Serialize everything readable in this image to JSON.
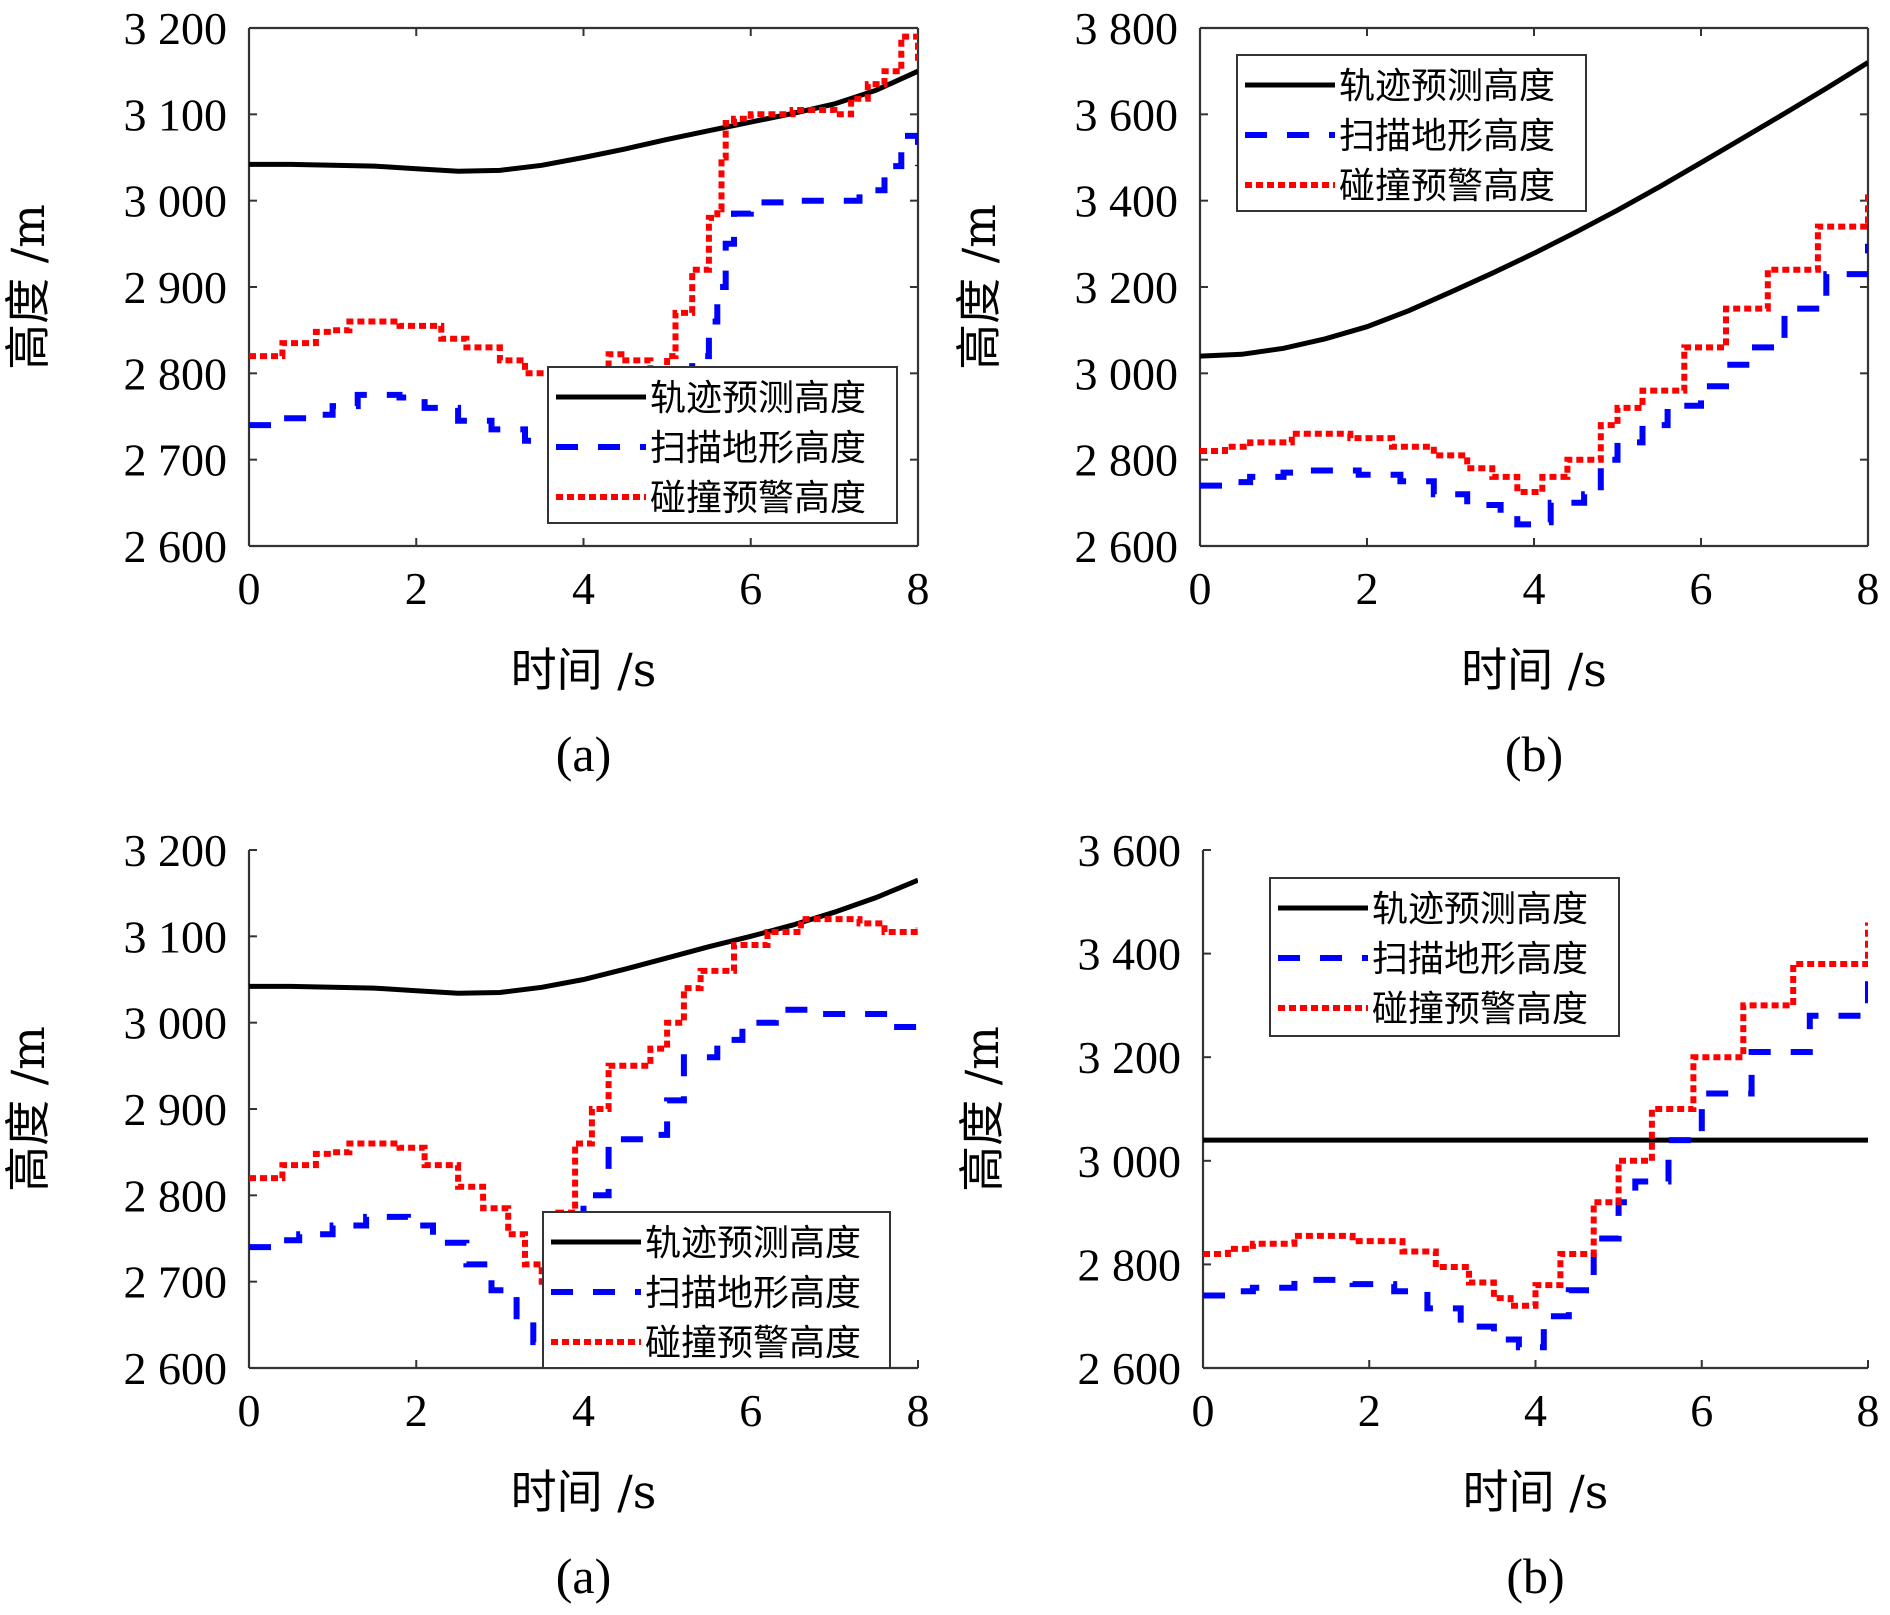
{
  "chart_data": [
    {
      "id": "top-left",
      "caption": "(a)",
      "type": "line",
      "xlabel": "时间 /s",
      "ylabel": "高度 /m",
      "xlim": [
        0,
        8
      ],
      "ylim": [
        2600,
        3200
      ],
      "xticks": [
        0,
        2,
        4,
        6,
        8
      ],
      "xtick_labels": [
        "0",
        "2",
        "4",
        "6",
        "8"
      ],
      "yticks": [
        2600,
        2700,
        2800,
        2900,
        3000,
        3100,
        3200
      ],
      "ytick_labels": [
        "2 600",
        "2 700",
        "2 800",
        "2 900",
        "3 000",
        "3 100",
        "3 200"
      ],
      "legend_position": "bottom-right",
      "grid": false,
      "series": [
        {
          "name": "轨迹预测高度",
          "style": "solid",
          "color": "#000000",
          "x": [
            0,
            0.5,
            1.0,
            1.5,
            2.0,
            2.5,
            3.0,
            3.5,
            4.0,
            4.5,
            5.0,
            5.5,
            6.0,
            6.5,
            7.0,
            7.5,
            8.0
          ],
          "y": [
            3042,
            3042,
            3041,
            3040,
            3037,
            3034,
            3035,
            3041,
            3050,
            3060,
            3071,
            3081,
            3091,
            3101,
            3112,
            3128,
            3150
          ]
        },
        {
          "name": "扫描地形高度",
          "style": "dashed",
          "color": "#0000ff",
          "x": [
            0,
            0.3,
            0.7,
            1.0,
            1.3,
            1.8,
            2.1,
            2.5,
            2.9,
            3.3,
            3.6,
            3.8,
            4.2,
            4.6,
            5.0,
            5.3,
            5.5,
            5.6,
            5.7,
            5.8,
            6.0,
            6.5,
            7.0,
            7.3,
            7.6,
            7.8,
            8.0
          ],
          "y": [
            2740,
            2748,
            2752,
            2762,
            2775,
            2772,
            2760,
            2745,
            2735,
            2722,
            2705,
            2690,
            2690,
            2700,
            2740,
            2820,
            2860,
            2900,
            2950,
            2985,
            2998,
            3000,
            3000,
            3012,
            3040,
            3075,
            3040
          ]
        },
        {
          "name": "碰撞预警高度",
          "style": "dotted",
          "color": "#ff0000",
          "x": [
            0,
            0.4,
            0.8,
            1.0,
            1.2,
            1.8,
            2.3,
            2.6,
            3.0,
            3.3,
            3.6,
            3.8,
            4.1,
            4.3,
            4.5,
            4.8,
            5.0,
            5.1,
            5.3,
            5.5,
            5.6,
            5.65,
            5.7,
            5.8,
            6.0,
            6.5,
            7.0,
            7.2,
            7.4,
            7.6,
            7.8,
            8.0
          ],
          "y": [
            2820,
            2835,
            2848,
            2850,
            2860,
            2855,
            2840,
            2830,
            2815,
            2800,
            2785,
            2775,
            2790,
            2822,
            2815,
            2800,
            2820,
            2870,
            2920,
            2980,
            2990,
            3050,
            3090,
            3095,
            3100,
            3105,
            3100,
            3118,
            3135,
            3150,
            3190,
            3160
          ]
        }
      ]
    },
    {
      "id": "top-right",
      "caption": "(b)",
      "type": "line",
      "xlabel": "时间 /s",
      "ylabel": "高度 /m",
      "xlim": [
        0,
        8
      ],
      "ylim": [
        2600,
        3800
      ],
      "xticks": [
        0,
        2,
        4,
        6,
        8
      ],
      "xtick_labels": [
        "0",
        "2",
        "4",
        "6",
        "8"
      ],
      "yticks": [
        2600,
        2800,
        3000,
        3200,
        3400,
        3600,
        3800
      ],
      "ytick_labels": [
        "2 600",
        "2 800",
        "3 000",
        "3 200",
        "3 400",
        "3 600",
        "3 800"
      ],
      "legend_position": "top-left",
      "grid": false,
      "series": [
        {
          "name": "轨迹预测高度",
          "style": "solid",
          "color": "#000000",
          "x": [
            0,
            0.5,
            1.0,
            1.5,
            2.0,
            2.5,
            3.0,
            3.5,
            4.0,
            4.5,
            5.0,
            5.5,
            6.0,
            6.5,
            7.0,
            7.5,
            8.0
          ],
          "y": [
            3040,
            3044,
            3058,
            3080,
            3108,
            3145,
            3188,
            3232,
            3278,
            3327,
            3378,
            3432,
            3488,
            3545,
            3602,
            3660,
            3720
          ]
        },
        {
          "name": "扫描地形高度",
          "style": "dashed",
          "color": "#0000ff",
          "x": [
            0,
            0.3,
            0.6,
            1.0,
            1.2,
            1.9,
            2.4,
            2.8,
            3.2,
            3.6,
            3.8,
            4.0,
            4.2,
            4.6,
            4.8,
            5.0,
            5.3,
            5.6,
            6.0,
            6.3,
            6.6,
            7.0,
            7.5,
            8.0
          ],
          "y": [
            2740,
            2748,
            2760,
            2770,
            2775,
            2765,
            2750,
            2720,
            2695,
            2670,
            2650,
            2655,
            2700,
            2720,
            2800,
            2840,
            2880,
            2925,
            2970,
            3020,
            3060,
            3150,
            3230,
            3300
          ]
        },
        {
          "name": "碰撞预警高度",
          "style": "dotted",
          "color": "#ff0000",
          "x": [
            0,
            0.3,
            0.6,
            1.1,
            1.8,
            2.3,
            2.8,
            3.2,
            3.5,
            3.8,
            4.1,
            4.4,
            4.8,
            5.0,
            5.3,
            5.8,
            6.3,
            6.8,
            7.4,
            8.0
          ],
          "y": [
            2820,
            2830,
            2840,
            2860,
            2850,
            2830,
            2810,
            2780,
            2760,
            2725,
            2760,
            2800,
            2880,
            2920,
            2960,
            3060,
            3150,
            3240,
            3340,
            3420
          ]
        }
      ]
    },
    {
      "id": "bottom-left",
      "caption": "(a)",
      "type": "line",
      "xlabel": "时间 /s",
      "ylabel": "高度 /m",
      "xlim": [
        0,
        8
      ],
      "ylim": [
        2600,
        3200
      ],
      "xticks": [
        0,
        2,
        4,
        6,
        8
      ],
      "xtick_labels": [
        "0",
        "2",
        "4",
        "6",
        "8"
      ],
      "yticks": [
        2600,
        2700,
        2800,
        2900,
        3000,
        3100,
        3200
      ],
      "ytick_labels": [
        "2 600",
        "2 700",
        "2 800",
        "2 900",
        "3 000",
        "3 100",
        "3 200"
      ],
      "legend_position": "bottom-right",
      "grid": false,
      "series": [
        {
          "name": "轨迹预测高度",
          "style": "solid",
          "color": "#000000",
          "x": [
            0,
            0.5,
            1.0,
            1.5,
            2.0,
            2.5,
            3.0,
            3.5,
            4.0,
            4.5,
            5.0,
            5.5,
            6.0,
            6.5,
            7.0,
            7.5,
            8.0
          ],
          "y": [
            3042,
            3042,
            3041,
            3040,
            3037,
            3034,
            3035,
            3041,
            3050,
            3062,
            3075,
            3088,
            3100,
            3113,
            3128,
            3145,
            3165
          ]
        },
        {
          "name": "扫描地形高度",
          "style": "dashed",
          "color": "#0000ff",
          "x": [
            0,
            0.3,
            0.6,
            1.0,
            1.4,
            1.9,
            2.2,
            2.6,
            2.9,
            3.2,
            3.4,
            3.5,
            3.8,
            4.0,
            4.3,
            4.8,
            5.0,
            5.2,
            5.6,
            5.9,
            6.3,
            6.8,
            7.3,
            7.7,
            8.0
          ],
          "y": [
            2740,
            2748,
            2755,
            2765,
            2775,
            2765,
            2745,
            2720,
            2690,
            2660,
            2630,
            2615,
            2700,
            2800,
            2865,
            2870,
            2910,
            2960,
            2980,
            3000,
            3015,
            3010,
            3010,
            2995,
            3005
          ]
        },
        {
          "name": "碰撞预警高度",
          "style": "dotted",
          "color": "#ff0000",
          "x": [
            0,
            0.4,
            0.8,
            1.0,
            1.2,
            1.8,
            2.1,
            2.5,
            2.8,
            3.1,
            3.3,
            3.5,
            3.6,
            3.7,
            3.9,
            4.1,
            4.3,
            4.8,
            5.0,
            5.2,
            5.4,
            5.8,
            6.2,
            6.6,
            7.0,
            7.3,
            7.6,
            8.0
          ],
          "y": [
            2820,
            2835,
            2848,
            2850,
            2860,
            2855,
            2835,
            2810,
            2785,
            2755,
            2720,
            2700,
            2730,
            2780,
            2860,
            2900,
            2950,
            2970,
            3000,
            3040,
            3060,
            3090,
            3105,
            3120,
            3120,
            3115,
            3105,
            3110
          ]
        }
      ]
    },
    {
      "id": "bottom-right",
      "caption": "(b)",
      "type": "line",
      "xlabel": "时间 /s",
      "ylabel": "高度 /m",
      "xlim": [
        0,
        8
      ],
      "ylim": [
        2600,
        3600
      ],
      "xticks": [
        0,
        2,
        4,
        6,
        8
      ],
      "xtick_labels": [
        "0",
        "2",
        "4",
        "6",
        "8"
      ],
      "yticks": [
        2600,
        2800,
        3000,
        3200,
        3400,
        3600
      ],
      "ytick_labels": [
        "2 600",
        "2 800",
        "3 000",
        "3 200",
        "3 400",
        "3 600"
      ],
      "legend_position": "top-left",
      "grid": false,
      "series": [
        {
          "name": "轨迹预测高度",
          "style": "solid",
          "color": "#000000",
          "x": [
            0,
            8
          ],
          "y": [
            3040,
            3040
          ]
        },
        {
          "name": "扫描地形高度",
          "style": "dashed",
          "color": "#0000ff",
          "x": [
            0,
            0.3,
            0.6,
            1.1,
            1.8,
            2.3,
            2.7,
            3.1,
            3.5,
            3.8,
            4.1,
            4.4,
            4.7,
            5.0,
            5.2,
            5.6,
            6.0,
            6.6,
            7.3,
            8.0
          ],
          "y": [
            2740,
            2748,
            2755,
            2770,
            2762,
            2748,
            2715,
            2680,
            2655,
            2640,
            2700,
            2750,
            2850,
            2920,
            2960,
            3040,
            3130,
            3210,
            3280,
            3350
          ]
        },
        {
          "name": "碰撞预警高度",
          "style": "dotted",
          "color": "#ff0000",
          "x": [
            0,
            0.3,
            0.6,
            1.1,
            1.8,
            2.4,
            2.8,
            3.2,
            3.5,
            3.7,
            4.0,
            4.3,
            4.7,
            5.0,
            5.4,
            5.9,
            6.5,
            7.1,
            8.0
          ],
          "y": [
            2820,
            2830,
            2840,
            2855,
            2845,
            2825,
            2795,
            2765,
            2735,
            2720,
            2760,
            2820,
            2920,
            3000,
            3100,
            3200,
            3300,
            3380,
            3460
          ]
        }
      ]
    }
  ]
}
